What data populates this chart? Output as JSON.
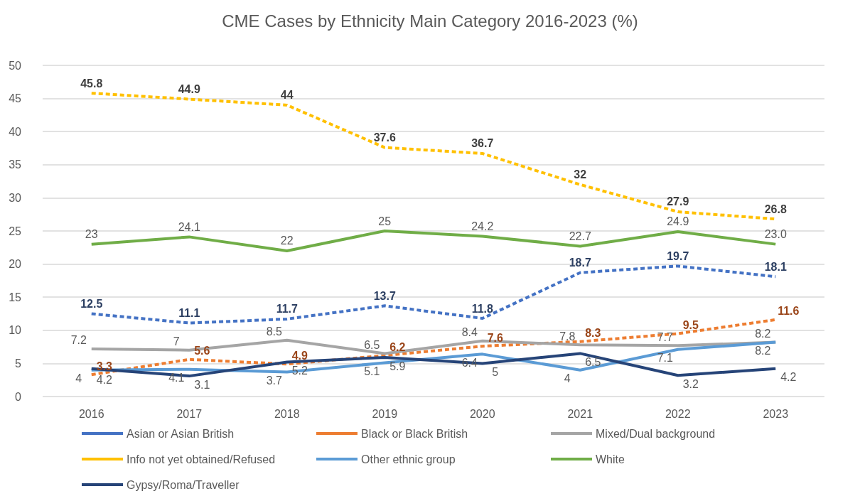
{
  "chart_data": {
    "type": "line",
    "title": "CME Cases by Ethnicity Main Category 2016-2023 (%)",
    "categories": [
      "2016",
      "2017",
      "2018",
      "2019",
      "2020",
      "2021",
      "2022",
      "2023"
    ],
    "series": [
      {
        "name": "Asian or Asian British",
        "color": "#4472c4",
        "line_style": "dashed",
        "values": [
          12.5,
          11.1,
          11.7,
          13.7,
          11.8,
          18.7,
          19.7,
          18.1
        ]
      },
      {
        "name": "Black or Black British",
        "color": "#ed7d31",
        "line_style": "dashed",
        "values": [
          3.3,
          5.6,
          4.9,
          6.2,
          7.6,
          8.3,
          9.5,
          11.6
        ]
      },
      {
        "name": "Mixed/Dual background",
        "color": "#a5a5a5",
        "line_style": "solid",
        "values": [
          7.2,
          7,
          8.5,
          6.5,
          8.4,
          7.8,
          7.7,
          8.2
        ]
      },
      {
        "name": "Info not yet obtained/Refused",
        "color": "#ffc000",
        "line_style": "dashed",
        "values": [
          45.8,
          44.9,
          44,
          37.6,
          36.7,
          32,
          27.9,
          26.8
        ]
      },
      {
        "name": "Other ethnic group",
        "color": "#5b9bd5",
        "line_style": "solid",
        "values": [
          4,
          4.1,
          3.7,
          5.1,
          6.4,
          4,
          7.1,
          8.2
        ]
      },
      {
        "name": "White",
        "color": "#70ad47",
        "line_style": "solid",
        "values": [
          23,
          24.1,
          22,
          25,
          24.2,
          22.7,
          24.9,
          23.0
        ],
        "value_labels": [
          "23",
          "24.1",
          "22",
          "25",
          "24.2",
          "22.7",
          "24.9",
          "23.0"
        ]
      },
      {
        "name": "Gypsy/Roma/Traveller",
        "color": "#264478",
        "line_style": "solid",
        "values": [
          4.2,
          3.1,
          5.2,
          5.9,
          5,
          6.5,
          3.2,
          4.2
        ]
      }
    ],
    "ylim": [
      0,
      50
    ],
    "yticks": [
      0,
      5,
      10,
      15,
      20,
      25,
      30,
      35,
      40,
      45,
      50
    ],
    "grid": "y",
    "legend": "bottom",
    "marker": "none",
    "data_labels": true
  }
}
